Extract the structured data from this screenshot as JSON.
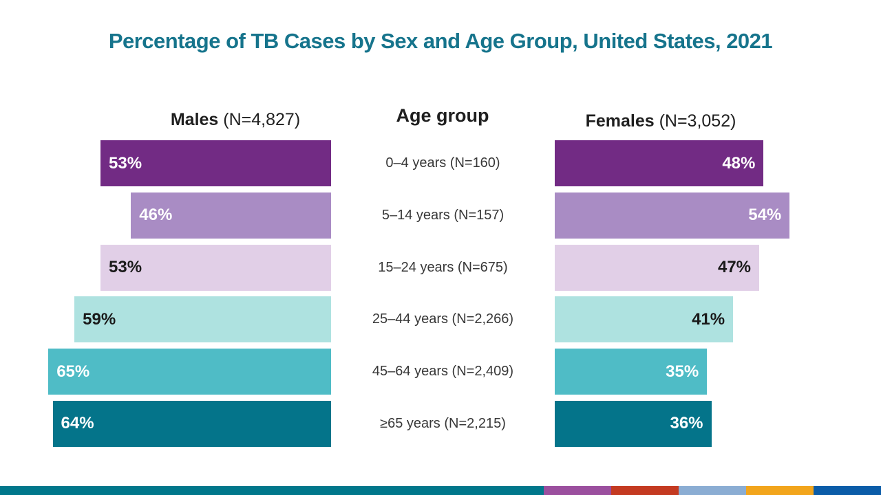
{
  "title": "Percentage of TB Cases by Sex and Age Group, United States, 2021",
  "title_color": "#16748C",
  "columns": {
    "males": {
      "bold": "Males",
      "rest": " (N=4,827)"
    },
    "center": {
      "label": "Age group"
    },
    "females": {
      "bold": "Females",
      "rest": " (N=3,052)"
    }
  },
  "rows": [
    {
      "age_label": "0–4 years (N=160)",
      "male": {
        "value": 53,
        "label": "53%"
      },
      "female": {
        "value": 48,
        "label": "48%"
      },
      "color": "#722B84",
      "value_text_color": "#ffffff"
    },
    {
      "age_label": "5–14 years (N=157)",
      "male": {
        "value": 46,
        "label": "46%"
      },
      "female": {
        "value": 54,
        "label": "54%"
      },
      "color": "#A98CC4",
      "value_text_color": "#ffffff"
    },
    {
      "age_label": "15–24 years (N=675)",
      "male": {
        "value": 53,
        "label": "53%"
      },
      "female": {
        "value": 47,
        "label": "47%"
      },
      "color": "#E1CFE7",
      "value_text_color": "#1a1a1a"
    },
    {
      "age_label": "25–44 years (N=2,266)",
      "male": {
        "value": 59,
        "label": "59%"
      },
      "female": {
        "value": 41,
        "label": "41%"
      },
      "color": "#AEE2E0",
      "value_text_color": "#1a1a1a"
    },
    {
      "age_label": "45–64 years (N=2,409)",
      "male": {
        "value": 65,
        "label": "65%"
      },
      "female": {
        "value": 35,
        "label": "35%"
      },
      "color": "#4FBCC6",
      "value_text_color": "#ffffff"
    },
    {
      "age_label": "≥65 years (N=2,215)",
      "male": {
        "value": 64,
        "label": "64%"
      },
      "female": {
        "value": 36,
        "label": "36%"
      },
      "color": "#04748A",
      "value_text_color": "#ffffff"
    }
  ],
  "chart_data": {
    "type": "bar",
    "subtype": "butterfly-diverging",
    "title": "Percentage of TB Cases by Sex and Age Group, United States, 2021",
    "categories": [
      "0–4 years (N=160)",
      "5–14 years (N=157)",
      "15–24 years (N=675)",
      "25–44 years (N=2,266)",
      "45–64 years (N=2,409)",
      "≥65 years (N=2,215)"
    ],
    "series": [
      {
        "name": "Males (N=4,827)",
        "values": [
          53,
          46,
          53,
          59,
          65,
          64
        ],
        "direction": "left"
      },
      {
        "name": "Females (N=3,052)",
        "values": [
          48,
          54,
          47,
          41,
          35,
          36
        ],
        "direction": "right"
      }
    ],
    "unit": "%",
    "xlim": [
      0,
      65
    ],
    "grid": false,
    "legend_position": "column-headers",
    "row_colors": [
      "#722B84",
      "#A98CC4",
      "#E1CFE7",
      "#AEE2E0",
      "#4FBCC6",
      "#04748A"
    ]
  },
  "footer": {
    "main_color": "#00778B",
    "segments": [
      "#9B4F9E",
      "#C43A21",
      "#8BADD3",
      "#F2A51C",
      "#0B5CA8"
    ]
  }
}
